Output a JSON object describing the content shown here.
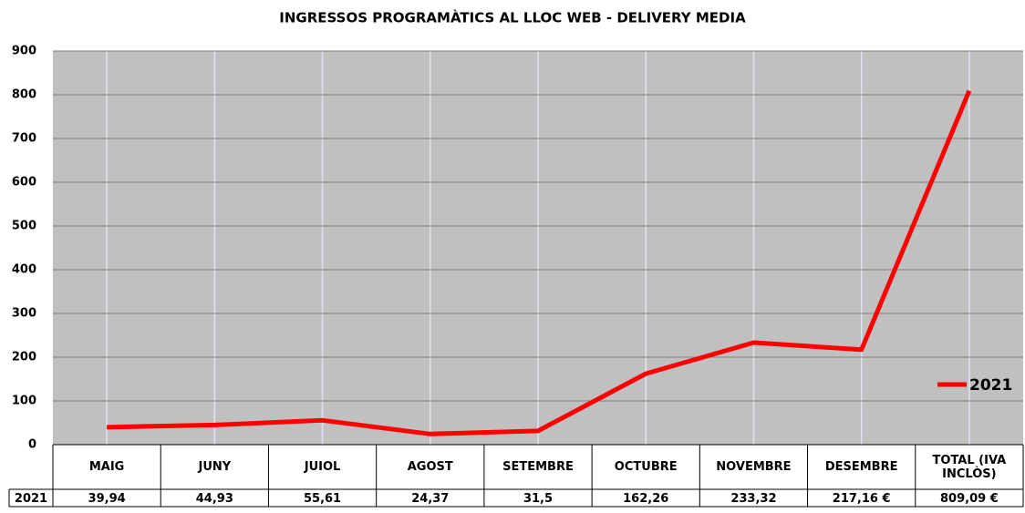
{
  "chart_data": {
    "type": "line",
    "title": "INGRESSOS PROGRAMÀTICS AL LLOC WEB - DELIVERY MEDIA",
    "categories": [
      "MAIG",
      "JUNY",
      "JUIOL",
      "AGOST",
      "SETEMBRE",
      "OCTUBRE",
      "NOVEMBRE",
      "DESEMBRE",
      "TOTAL (IVA INCLÒS)"
    ],
    "series": [
      {
        "name": "2021",
        "color": "#ff0000",
        "values": [
          39.94,
          44.93,
          55.61,
          24.37,
          31.5,
          162.26,
          233.32,
          217.16,
          809.09
        ],
        "value_labels": [
          "39,94",
          "44,93",
          "55,61",
          "24,37",
          "31,5",
          "162,26",
          "233,32",
          "217,16 €",
          "809,09 €"
        ]
      }
    ],
    "ylim": [
      0,
      900
    ],
    "yticks": [
      0,
      100,
      200,
      300,
      400,
      500,
      600,
      700,
      800,
      900
    ],
    "grid": true,
    "legend": "right"
  }
}
